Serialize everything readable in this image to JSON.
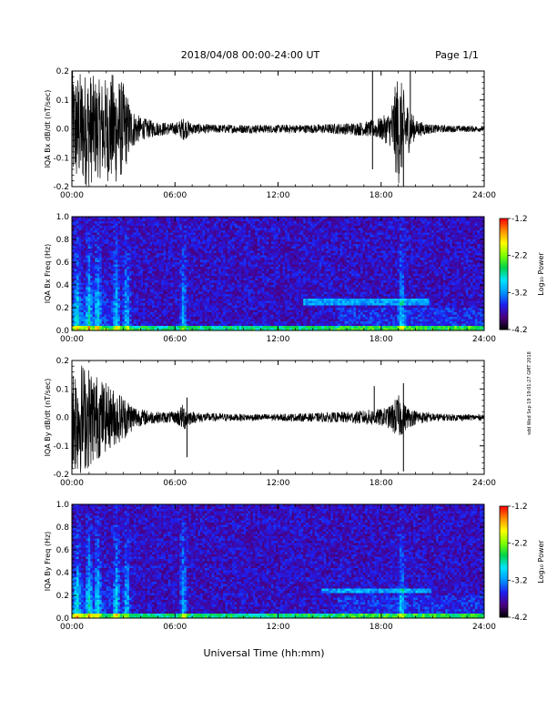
{
  "header": {
    "title": "2018/04/08  00:00-24:00 UT",
    "page": "Page 1/1"
  },
  "footer": {
    "xlabel": "Universal Time (hh:mm)"
  },
  "side_stamp": "sdd Wed Sep 19 19:01:27 GMT 2018",
  "colorbar": {
    "label": "Log₁₀ Power",
    "ticks": [
      "-1.2",
      "-2.2",
      "-3.2",
      "-4.2"
    ],
    "range": [
      -4.2,
      -1.2
    ],
    "colors": [
      "#000000",
      "#4b0082",
      "#1e1ef0",
      "#0096ff",
      "#00e5ff",
      "#00d24b",
      "#7fff00",
      "#ffff00",
      "#ff8c00",
      "#ff0000"
    ]
  },
  "chart_data": [
    {
      "type": "line",
      "title": "",
      "ylabel": "IQA Bx dB/dt (nT/sec)",
      "xlabel": "",
      "x_ticks": [
        "00:00",
        "06:00",
        "12:00",
        "18:00",
        "24:00"
      ],
      "y_ticks": [
        "0.2",
        "0.1",
        "0.0",
        "-0.1",
        "-0.2"
      ],
      "xlim": [
        0,
        24
      ],
      "ylim": [
        -0.2,
        0.2
      ],
      "series": [
        {
          "envelope_hours": [
            0,
            0.5,
            1,
            1.5,
            2,
            2.5,
            3,
            3.5,
            4,
            5,
            6,
            6.5,
            7,
            8,
            10,
            12,
            14,
            16,
            17,
            17.5,
            18,
            18.5,
            19,
            19.5,
            20,
            21,
            22,
            24
          ],
          "envelope_amplitude": [
            0.2,
            0.2,
            0.2,
            0.17,
            0.18,
            0.2,
            0.16,
            0.07,
            0.04,
            0.025,
            0.02,
            0.04,
            0.02,
            0.015,
            0.015,
            0.014,
            0.015,
            0.02,
            0.025,
            0.03,
            0.04,
            0.06,
            0.2,
            0.1,
            0.03,
            0.015,
            0.012,
            0.01
          ],
          "spikes": [
            {
              "x": 17.5,
              "y": -0.14
            },
            {
              "x": 17.5,
              "y": 0.2
            },
            {
              "x": 19.3,
              "y": -0.2
            },
            {
              "x": 19.7,
              "y": 0.2
            }
          ]
        }
      ]
    },
    {
      "type": "heatmap",
      "title": "",
      "ylabel": "IQA Bx Freq (Hz)",
      "xlabel": "",
      "x_ticks": [
        "00:00",
        "06:00",
        "12:00",
        "18:00",
        "24:00"
      ],
      "y_ticks": [
        "1.0",
        "0.8",
        "0.6",
        "0.4",
        "0.2",
        "0.0"
      ],
      "xlim": [
        0,
        24
      ],
      "ylim": [
        0,
        1.0
      ],
      "zlim": [
        -4.2,
        -1.2
      ],
      "zlabel": "Log₁₀ Power",
      "features": {
        "low_freq_band_hz": [
          0.0,
          0.05
        ],
        "broadband_bursts_hours": [
          0.3,
          1.0,
          1.5,
          2.6,
          3.2,
          6.5,
          19.2
        ],
        "narrow_line_hz": 0.25,
        "narrow_line_hours": [
          13.5,
          20.8
        ]
      }
    },
    {
      "type": "line",
      "title": "",
      "ylabel": "IQA By dB/dt (nT/sec)",
      "xlabel": "",
      "x_ticks": [
        "00:00",
        "06:00",
        "12:00",
        "18:00",
        "24:00"
      ],
      "y_ticks": [
        "0.2",
        "0.1",
        "0.0",
        "-0.1",
        "-0.2"
      ],
      "xlim": [
        0,
        24
      ],
      "ylim": [
        -0.2,
        0.2
      ],
      "series": [
        {
          "envelope_hours": [
            0,
            0.5,
            1,
            1.5,
            2,
            2.5,
            3,
            3.5,
            4,
            5,
            6,
            6.5,
            7,
            8,
            10,
            12,
            14,
            16,
            17,
            17.5,
            18,
            18.5,
            19,
            19.5,
            20,
            21,
            22,
            24
          ],
          "envelope_amplitude": [
            0.2,
            0.2,
            0.18,
            0.15,
            0.12,
            0.1,
            0.08,
            0.05,
            0.03,
            0.02,
            0.02,
            0.05,
            0.02,
            0.015,
            0.012,
            0.012,
            0.015,
            0.02,
            0.025,
            0.03,
            0.03,
            0.04,
            0.08,
            0.04,
            0.025,
            0.015,
            0.012,
            0.01
          ],
          "spikes": [
            {
              "x": 6.7,
              "y": -0.14
            },
            {
              "x": 6.7,
              "y": 0.07
            },
            {
              "x": 17.6,
              "y": 0.11
            },
            {
              "x": 19.3,
              "y": -0.19
            },
            {
              "x": 19.3,
              "y": 0.12
            }
          ]
        }
      ]
    },
    {
      "type": "heatmap",
      "title": "",
      "ylabel": "IQA By Freq (Hz)",
      "xlabel": "",
      "x_ticks": [
        "00:00",
        "06:00",
        "12:00",
        "18:00",
        "24:00"
      ],
      "y_ticks": [
        "1.0",
        "0.8",
        "0.6",
        "0.4",
        "0.2",
        "0.0"
      ],
      "xlim": [
        0,
        24
      ],
      "ylim": [
        0,
        1.0
      ],
      "zlim": [
        -4.2,
        -1.2
      ],
      "zlabel": "Log₁₀ Power",
      "features": {
        "low_freq_band_hz": [
          0.0,
          0.05
        ],
        "broadband_bursts_hours": [
          0.3,
          1.0,
          1.5,
          2.6,
          3.2,
          6.5,
          19.2
        ],
        "narrow_line_hz": 0.24,
        "narrow_line_hours": [
          14.5,
          21.0
        ]
      }
    }
  ]
}
